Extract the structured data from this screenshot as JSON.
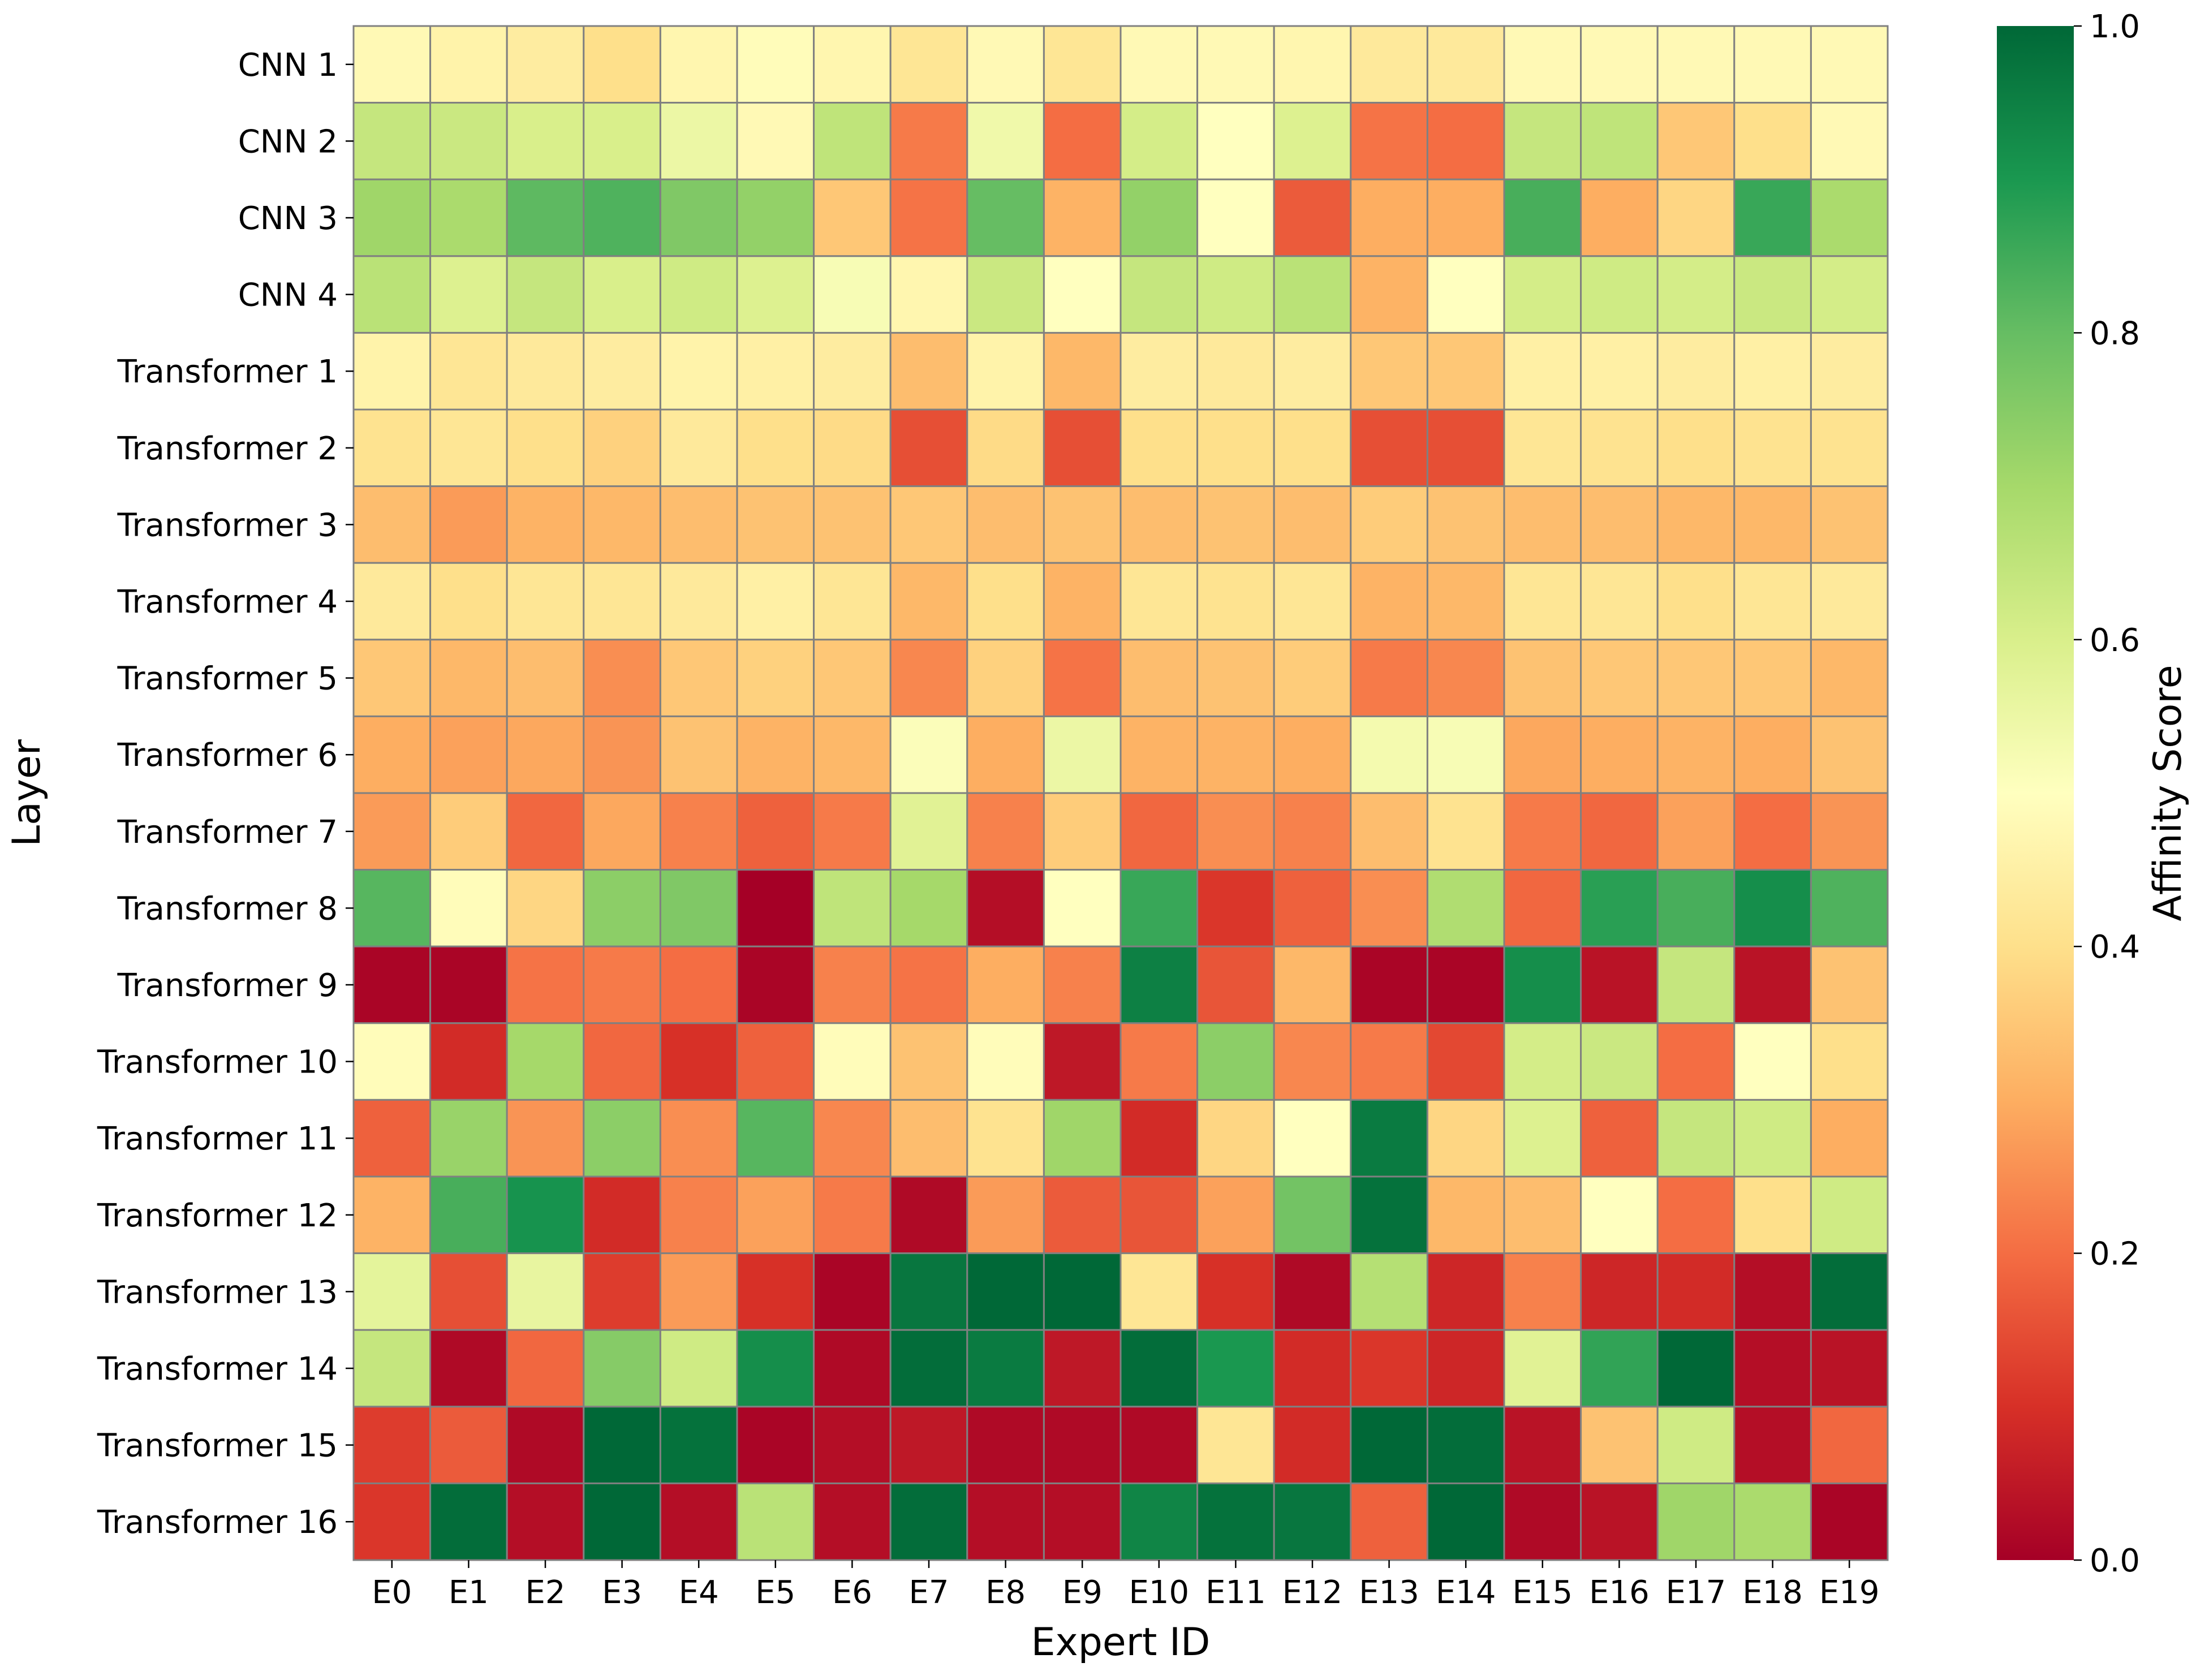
{
  "chart_data": {
    "type": "heatmap",
    "title": "",
    "xlabel": "Expert ID",
    "ylabel": "Layer",
    "x": [
      "E0",
      "E1",
      "E2",
      "E3",
      "E4",
      "E5",
      "E6",
      "E7",
      "E8",
      "E9",
      "E10",
      "E11",
      "E12",
      "E13",
      "E14",
      "E15",
      "E16",
      "E17",
      "E18",
      "E19"
    ],
    "y": [
      "CNN 1",
      "CNN 2",
      "CNN 3",
      "CNN 4",
      "Transformer 1",
      "Transformer 2",
      "Transformer 3",
      "Transformer 4",
      "Transformer 5",
      "Transformer 6",
      "Transformer 7",
      "Transformer 8",
      "Transformer 9",
      "Transformer 10",
      "Transformer 11",
      "Transformer 12",
      "Transformer 13",
      "Transformer 14",
      "Transformer 15",
      "Transformer 16"
    ],
    "values": [
      [
        0.48,
        0.46,
        0.44,
        0.4,
        0.47,
        0.49,
        0.47,
        0.42,
        0.48,
        0.42,
        0.48,
        0.48,
        0.47,
        0.43,
        0.43,
        0.48,
        0.48,
        0.48,
        0.48,
        0.48
      ],
      [
        0.64,
        0.63,
        0.6,
        0.6,
        0.55,
        0.48,
        0.65,
        0.22,
        0.54,
        0.2,
        0.61,
        0.5,
        0.59,
        0.21,
        0.2,
        0.64,
        0.65,
        0.35,
        0.4,
        0.48
      ],
      [
        0.71,
        0.69,
        0.81,
        0.83,
        0.76,
        0.73,
        0.35,
        0.21,
        0.8,
        0.31,
        0.73,
        0.5,
        0.17,
        0.3,
        0.3,
        0.84,
        0.3,
        0.38,
        0.86,
        0.69
      ],
      [
        0.66,
        0.59,
        0.64,
        0.6,
        0.62,
        0.59,
        0.52,
        0.47,
        0.63,
        0.5,
        0.64,
        0.62,
        0.66,
        0.31,
        0.5,
        0.61,
        0.62,
        0.61,
        0.63,
        0.61
      ],
      [
        0.46,
        0.42,
        0.43,
        0.44,
        0.46,
        0.45,
        0.44,
        0.33,
        0.46,
        0.32,
        0.44,
        0.43,
        0.44,
        0.35,
        0.35,
        0.45,
        0.45,
        0.44,
        0.45,
        0.44
      ],
      [
        0.41,
        0.42,
        0.4,
        0.37,
        0.43,
        0.4,
        0.39,
        0.15,
        0.39,
        0.15,
        0.4,
        0.4,
        0.4,
        0.15,
        0.15,
        0.42,
        0.41,
        0.4,
        0.41,
        0.41
      ],
      [
        0.33,
        0.27,
        0.31,
        0.32,
        0.33,
        0.34,
        0.34,
        0.35,
        0.33,
        0.34,
        0.33,
        0.34,
        0.33,
        0.36,
        0.34,
        0.33,
        0.33,
        0.32,
        0.32,
        0.34
      ],
      [
        0.43,
        0.4,
        0.42,
        0.42,
        0.43,
        0.45,
        0.42,
        0.32,
        0.4,
        0.31,
        0.42,
        0.41,
        0.42,
        0.31,
        0.32,
        0.42,
        0.42,
        0.4,
        0.42,
        0.43
      ],
      [
        0.35,
        0.32,
        0.33,
        0.25,
        0.35,
        0.37,
        0.35,
        0.24,
        0.37,
        0.21,
        0.33,
        0.34,
        0.36,
        0.22,
        0.24,
        0.34,
        0.35,
        0.35,
        0.35,
        0.32
      ],
      [
        0.3,
        0.28,
        0.29,
        0.26,
        0.34,
        0.31,
        0.32,
        0.51,
        0.3,
        0.55,
        0.31,
        0.31,
        0.3,
        0.53,
        0.52,
        0.29,
        0.3,
        0.31,
        0.3,
        0.34
      ],
      [
        0.27,
        0.36,
        0.19,
        0.29,
        0.23,
        0.18,
        0.22,
        0.58,
        0.23,
        0.36,
        0.19,
        0.25,
        0.23,
        0.33,
        0.41,
        0.22,
        0.19,
        0.28,
        0.2,
        0.26
      ],
      [
        0.82,
        0.49,
        0.38,
        0.74,
        0.76,
        0.0,
        0.65,
        0.7,
        0.03,
        0.5,
        0.86,
        0.11,
        0.18,
        0.25,
        0.68,
        0.19,
        0.88,
        0.84,
        0.92,
        0.83
      ],
      [
        0.01,
        0.01,
        0.21,
        0.22,
        0.2,
        0.01,
        0.23,
        0.21,
        0.3,
        0.23,
        0.95,
        0.16,
        0.32,
        0.01,
        0.01,
        0.92,
        0.04,
        0.64,
        0.04,
        0.34
      ],
      [
        0.49,
        0.09,
        0.7,
        0.19,
        0.1,
        0.18,
        0.49,
        0.34,
        0.49,
        0.05,
        0.22,
        0.74,
        0.24,
        0.22,
        0.14,
        0.61,
        0.63,
        0.2,
        0.5,
        0.4
      ],
      [
        0.18,
        0.72,
        0.26,
        0.74,
        0.25,
        0.82,
        0.24,
        0.33,
        0.41,
        0.71,
        0.09,
        0.38,
        0.5,
        0.96,
        0.38,
        0.59,
        0.18,
        0.64,
        0.62,
        0.3
      ],
      [
        0.31,
        0.84,
        0.91,
        0.09,
        0.23,
        0.28,
        0.22,
        0.02,
        0.27,
        0.17,
        0.16,
        0.28,
        0.78,
        0.98,
        0.32,
        0.33,
        0.5,
        0.2,
        0.4,
        0.62
      ],
      [
        0.57,
        0.15,
        0.56,
        0.12,
        0.27,
        0.1,
        0.01,
        0.97,
        1.0,
        1.0,
        0.42,
        0.1,
        0.02,
        0.67,
        0.08,
        0.23,
        0.08,
        0.09,
        0.03,
        0.99
      ],
      [
        0.64,
        0.02,
        0.19,
        0.75,
        0.62,
        0.92,
        0.02,
        0.99,
        0.96,
        0.05,
        0.99,
        0.9,
        0.09,
        0.11,
        0.08,
        0.58,
        0.87,
        1.0,
        0.03,
        0.04
      ],
      [
        0.12,
        0.17,
        0.02,
        1.0,
        0.98,
        0.01,
        0.03,
        0.05,
        0.02,
        0.02,
        0.02,
        0.42,
        0.09,
        1.0,
        0.99,
        0.04,
        0.34,
        0.62,
        0.03,
        0.19
      ],
      [
        0.11,
        0.99,
        0.03,
        1.0,
        0.03,
        0.66,
        0.03,
        0.99,
        0.03,
        0.03,
        0.94,
        0.98,
        0.97,
        0.18,
        1.0,
        0.02,
        0.04,
        0.71,
        0.69,
        0.01
      ]
    ],
    "vmin": 0.0,
    "vmax": 1.0,
    "colormap": "RdYlGn",
    "cell_border_color": "#808080",
    "colorbar": {
      "label": "Affinity Score",
      "ticks": [
        "0.0",
        "0.2",
        "0.4",
        "0.6",
        "0.8",
        "1.0"
      ],
      "tick_values": [
        0.0,
        0.2,
        0.4,
        0.6,
        0.8,
        1.0
      ],
      "position": "right"
    },
    "grid": false,
    "legend": "none"
  }
}
